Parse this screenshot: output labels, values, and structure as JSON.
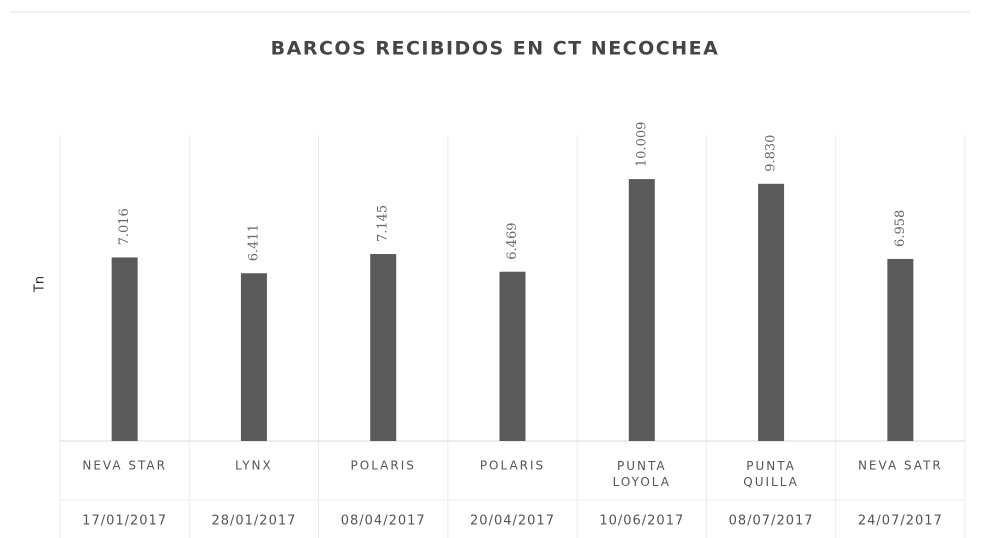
{
  "chart_data": {
    "type": "bar",
    "title": "BARCOS RECIBIDOS EN CT NECOCHEA",
    "y_label": "Tn",
    "categories": [
      "NEVA STAR",
      "LYNX",
      "POLARIS",
      "POLARIS",
      "PUNTA\nLOYOLA",
      "PUNTA\nQUILLA",
      "NEVA SATR"
    ],
    "dates": [
      "17/01/2017",
      "28/01/2017",
      "08/04/2017",
      "20/04/2017",
      "10/06/2017",
      "08/07/2017",
      "24/07/2017"
    ],
    "values": [
      7016,
      6411,
      7145,
      6469,
      10009,
      9830,
      6958
    ],
    "value_labels": [
      "7.016",
      "6.411",
      "7.145",
      "6.469",
      "10.009",
      "9.830",
      "6.958"
    ],
    "color": "#5a5a5a",
    "ylim": [
      0,
      12000
    ]
  }
}
